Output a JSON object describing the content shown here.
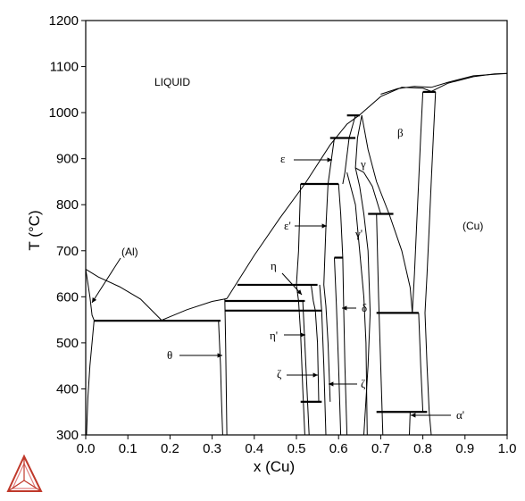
{
  "chart_data": {
    "type": "phase-diagram",
    "xlabel": "x (Cu)",
    "ylabel": "T (°C)",
    "xlim": [
      0.0,
      1.0
    ],
    "ylim": [
      300,
      1200
    ],
    "x_ticks": [
      "0.0",
      "0.1",
      "0.2",
      "0.3",
      "0.4",
      "0.5",
      "0.6",
      "0.7",
      "0.8",
      "0.9",
      "1.0"
    ],
    "y_ticks": [
      "300",
      "400",
      "500",
      "600",
      "700",
      "800",
      "900",
      "1000",
      "1100",
      "1200"
    ],
    "phase_labels": [
      {
        "text": "LIQUID"
      },
      {
        "text": "(Al)"
      },
      {
        "text": "(Cu)"
      },
      {
        "text": "β"
      },
      {
        "text": "γ"
      },
      {
        "text": "γ'"
      },
      {
        "text": "ε"
      },
      {
        "text": "ε'"
      },
      {
        "text": "η"
      },
      {
        "text": "η'"
      },
      {
        "text": "θ"
      },
      {
        "text": "δ"
      },
      {
        "text": "ζ"
      },
      {
        "text": "ζ'"
      },
      {
        "text": "α'"
      }
    ],
    "liquidus": [
      [
        0.0,
        660
      ],
      [
        0.05,
        642
      ],
      [
        0.1,
        618
      ],
      [
        0.15,
        585
      ],
      [
        0.18,
        548
      ],
      [
        0.25,
        574
      ],
      [
        0.33,
        595
      ],
      [
        0.4,
        690
      ],
      [
        0.5,
        820
      ],
      [
        0.6,
        950
      ],
      [
        0.64,
        995
      ],
      [
        0.7,
        1040
      ],
      [
        0.75,
        1055
      ],
      [
        0.82,
        1045
      ],
      [
        0.9,
        1070
      ],
      [
        1.0,
        1085
      ]
    ],
    "invariant_lines": [
      {
        "T": 548,
        "x": [
          0.02,
          0.32
        ]
      },
      {
        "T": 591,
        "x": [
          0.33,
          0.52
        ]
      },
      {
        "T": 626,
        "x": [
          0.36,
          0.55
        ]
      },
      {
        "T": 570,
        "x": [
          0.33,
          0.56
        ]
      },
      {
        "T": 845,
        "x": [
          0.51,
          0.6
        ]
      },
      {
        "T": 945,
        "x": [
          0.58,
          0.64
        ]
      },
      {
        "T": 994,
        "x": [
          0.62,
          0.65
        ]
      },
      {
        "T": 1045,
        "x": [
          0.8,
          0.83
        ]
      },
      {
        "T": 780,
        "x": [
          0.67,
          0.73
        ]
      },
      {
        "T": 565,
        "x": [
          0.69,
          0.79
        ]
      },
      {
        "T": 685,
        "x": [
          0.59,
          0.61
        ]
      },
      {
        "T": 372,
        "x": [
          0.51,
          0.56
        ]
      },
      {
        "T": 350,
        "x": [
          0.69,
          0.81
        ]
      }
    ]
  },
  "logo": {
    "name": "thermo-calc-logo"
  }
}
